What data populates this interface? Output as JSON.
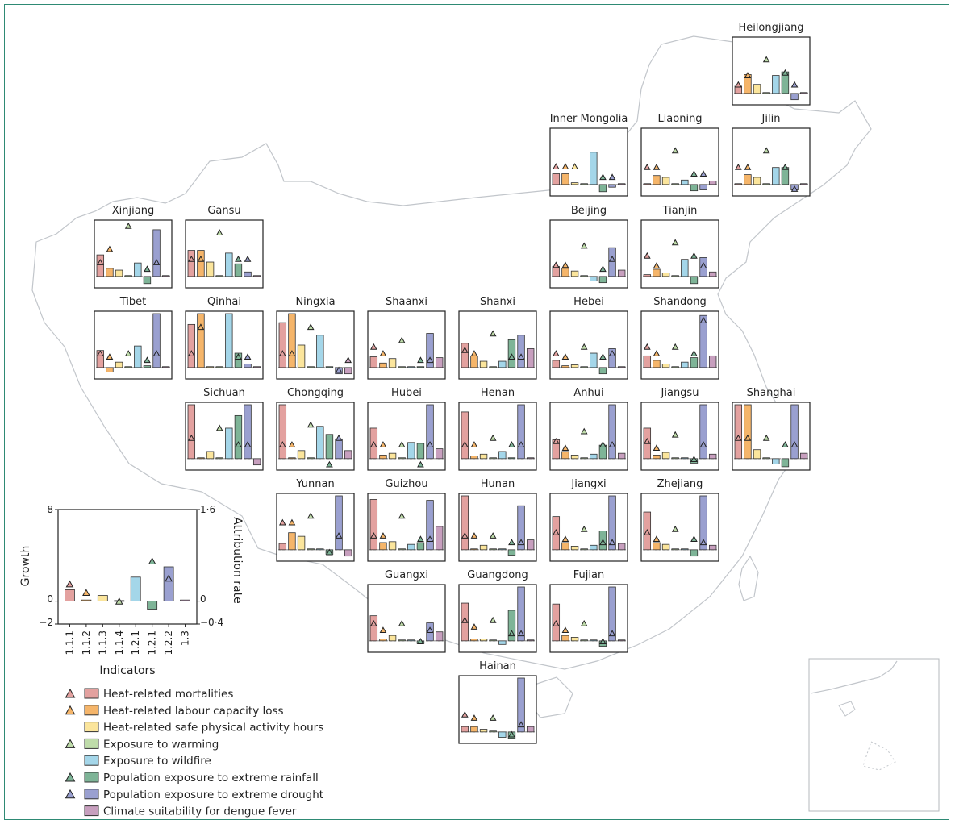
{
  "legend": {
    "colors": [
      "#e3a19f",
      "#f5b56a",
      "#fbe59c",
      "#bfdcaa",
      "#a4d6e9",
      "#7eb497",
      "#9aa0d0",
      "#c79fbe"
    ],
    "labels": [
      "Heat-related mortalities",
      "Heat-related labour capacity loss",
      "Heat-related safe physical activity hours",
      "Exposure to warming",
      "Exposure to wildfire",
      "Population exposure to extreme rainfall",
      "Population exposure to extreme drought",
      "Climate suitability for dengue fever"
    ],
    "triangle_shown": [
      true,
      true,
      false,
      true,
      false,
      true,
      true,
      false
    ]
  },
  "chart_data": {
    "type": "bar",
    "description_series": [
      "growth (bars)",
      "attribution rate (triangles)"
    ],
    "categories": [
      "1.1.1",
      "1.1.2",
      "1.1.3",
      "1.1.4",
      "1.2.1",
      "1.2.1",
      "1.2.2",
      "1.3"
    ],
    "national": {
      "growth": [
        1.0,
        0.1,
        0.5,
        0.05,
        2.1,
        -0.7,
        3.0,
        0.1
      ],
      "attribution": [
        0.3,
        0.15,
        null,
        0.0,
        null,
        0.7,
        0.4,
        null
      ]
    },
    "ylim_growth": [
      -2,
      8
    ],
    "ylim_attribution": [
      -0.4,
      1.6
    ],
    "ylabel_left": "Growth",
    "ylabel_right": "Attribution rate",
    "xlabel": "Indicators",
    "tick_labels_left": [
      "8",
      "0",
      "−2"
    ],
    "tick_labels_right": [
      "1·6",
      "0",
      "−0·4"
    ],
    "provinces": [
      {
        "name": "Heilongjiang",
        "row": 0,
        "col": 7,
        "growth": [
          0.8,
          2.1,
          1.0,
          0.1,
          2.0,
          2.4,
          -0.7,
          0.1
        ],
        "attribution": [
          0.12,
          0.26,
          null,
          0.5,
          null,
          0.3,
          0.12,
          null
        ]
      },
      {
        "name": "Inner Mongolia",
        "row": 1,
        "col": 5,
        "growth": [
          1.2,
          1.2,
          0.2,
          0.1,
          3.6,
          -0.8,
          -0.3,
          0.1
        ],
        "attribution": [
          0.26,
          0.26,
          0.26,
          null,
          null,
          0.1,
          0.1,
          null
        ]
      },
      {
        "name": "Liaoning",
        "row": 1,
        "col": 6,
        "growth": [
          0.1,
          1.0,
          0.8,
          0.1,
          0.5,
          -0.7,
          -0.6,
          0.4
        ],
        "attribution": [
          0.25,
          0.25,
          null,
          0.5,
          null,
          0.15,
          0.15,
          null
        ]
      },
      {
        "name": "Jilin",
        "row": 1,
        "col": 7,
        "growth": [
          0.1,
          1.1,
          0.8,
          0.1,
          1.9,
          1.9,
          -0.6,
          0.1
        ],
        "attribution": [
          0.25,
          0.25,
          null,
          0.5,
          null,
          0.25,
          -0.08,
          null
        ]
      },
      {
        "name": "Xinjiang",
        "row": 2,
        "col": 0,
        "growth": [
          2.4,
          0.9,
          0.7,
          0.1,
          1.5,
          -0.8,
          5.2,
          0.1
        ],
        "attribution": [
          0.2,
          0.4,
          null,
          0.75,
          null,
          0.1,
          0.2,
          null
        ]
      },
      {
        "name": "Gansu",
        "row": 2,
        "col": 1,
        "growth": [
          2.9,
          2.9,
          1.6,
          0.1,
          2.6,
          1.4,
          0.5,
          0.1
        ],
        "attribution": [
          0.25,
          0.25,
          null,
          0.65,
          null,
          0.25,
          0.25,
          null
        ]
      },
      {
        "name": "Beijing",
        "row": 3,
        "col": 5,
        "growth": [
          1.1,
          0.9,
          0.6,
          0.1,
          -0.5,
          -0.7,
          3.2,
          0.7
        ],
        "attribution": [
          0.16,
          0.16,
          null,
          0.45,
          null,
          0.1,
          0.25,
          null
        ]
      },
      {
        "name": "Tianjin",
        "row": 3,
        "col": 6,
        "growth": [
          0.2,
          0.8,
          0.4,
          0.1,
          1.9,
          -0.8,
          2.1,
          0.5
        ],
        "attribution": [
          0.3,
          0.15,
          null,
          0.5,
          null,
          0.3,
          0.15,
          null
        ]
      },
      {
        "name": "Tibet",
        "row": 4,
        "col": 0,
        "growth": [
          1.9,
          -0.5,
          0.6,
          0.1,
          2.4,
          0.2,
          6.0,
          0.1
        ],
        "attribution": [
          0.2,
          0.15,
          null,
          0.2,
          null,
          0.1,
          0.2,
          null
        ]
      },
      {
        "name": "Qinhai",
        "row": 4,
        "col": 1,
        "growth": [
          4.8,
          6.0,
          0.1,
          0.1,
          6.0,
          1.6,
          0.4,
          0.1
        ],
        "attribution": [
          0.2,
          0.6,
          null,
          null,
          null,
          0.15,
          0.15,
          null
        ]
      },
      {
        "name": "Ningxia",
        "row": 4,
        "col": 2,
        "growth": [
          5.0,
          6.0,
          2.5,
          0.1,
          3.6,
          0.1,
          -0.7,
          -0.7
        ],
        "attribution": [
          0.2,
          0.2,
          null,
          0.6,
          null,
          null,
          -0.05,
          0.1
        ]
      },
      {
        "name": "Shaanxi",
        "row": 4,
        "col": 3,
        "growth": [
          1.2,
          0.5,
          1.0,
          0.1,
          0.1,
          0.1,
          3.8,
          1.1
        ],
        "attribution": [
          0.3,
          0.2,
          null,
          0.4,
          null,
          0.1,
          0.1,
          null
        ]
      },
      {
        "name": "Shanxi",
        "row": 4,
        "col": 4,
        "growth": [
          2.7,
          1.3,
          0.7,
          0.1,
          0.7,
          3.1,
          3.6,
          2.1
        ],
        "attribution": [
          0.25,
          0.2,
          null,
          0.5,
          null,
          0.15,
          0.15,
          null
        ]
      },
      {
        "name": "Hebei",
        "row": 4,
        "col": 5,
        "growth": [
          0.8,
          0.2,
          0.3,
          0.1,
          1.6,
          -0.7,
          2.1,
          0.1
        ],
        "attribution": [
          0.2,
          0.15,
          null,
          0.3,
          null,
          0.15,
          0.2,
          null
        ]
      },
      {
        "name": "Shandong",
        "row": 4,
        "col": 6,
        "growth": [
          1.3,
          0.8,
          0.4,
          0.1,
          0.6,
          1.1,
          5.8,
          1.3
        ],
        "attribution": [
          0.3,
          0.2,
          null,
          0.3,
          null,
          0.2,
          0.7,
          null
        ]
      },
      {
        "name": "Sichuan",
        "row": 5,
        "col": 1,
        "growth": [
          6.0,
          0.1,
          0.8,
          0.1,
          3.4,
          4.8,
          6.0,
          -0.7
        ],
        "attribution": [
          0.3,
          null,
          null,
          0.45,
          null,
          0.2,
          0.2,
          null
        ]
      },
      {
        "name": "Chongqing",
        "row": 5,
        "col": 2,
        "growth": [
          6.0,
          0.1,
          0.9,
          0.1,
          3.6,
          2.7,
          2.2,
          0.9
        ],
        "attribution": [
          0.2,
          0.2,
          null,
          0.5,
          null,
          -0.1,
          0.3,
          null
        ]
      },
      {
        "name": "Hubei",
        "row": 5,
        "col": 3,
        "growth": [
          3.4,
          0.4,
          0.6,
          0.1,
          1.8,
          1.7,
          6.0,
          1.1
        ],
        "attribution": [
          0.2,
          0.2,
          null,
          0.2,
          null,
          -0.1,
          0.2,
          null
        ]
      },
      {
        "name": "Henan",
        "row": 5,
        "col": 4,
        "growth": [
          5.2,
          0.3,
          0.5,
          0.1,
          0.8,
          0.1,
          6.0,
          0.1
        ],
        "attribution": [
          0.2,
          0.2,
          null,
          0.3,
          null,
          0.2,
          0.2,
          null
        ]
      },
      {
        "name": "Anhui",
        "row": 5,
        "col": 5,
        "growth": [
          2.1,
          0.8,
          0.4,
          0.1,
          0.5,
          1.5,
          6.0,
          0.6
        ],
        "attribution": [
          0.25,
          0.15,
          null,
          0.4,
          null,
          0.2,
          0.2,
          null
        ]
      },
      {
        "name": "Jiangsu",
        "row": 5,
        "col": 6,
        "growth": [
          3.4,
          0.4,
          0.7,
          0.1,
          0.1,
          -0.5,
          6.0,
          0.5
        ],
        "attribution": [
          0.25,
          0.15,
          null,
          0.35,
          null,
          -0.02,
          0.2,
          null
        ]
      },
      {
        "name": "Shanghai",
        "row": 5,
        "col": 7,
        "growth": [
          6.0,
          6.0,
          1.0,
          0.1,
          -0.6,
          -0.9,
          6.0,
          0.6
        ],
        "attribution": [
          0.3,
          0.3,
          null,
          0.3,
          null,
          0.2,
          0.2,
          null
        ]
      },
      {
        "name": "Yunnan",
        "row": 6,
        "col": 2,
        "growth": [
          0.7,
          1.9,
          1.5,
          0.1,
          0.1,
          -0.5,
          6.0,
          -0.7
        ],
        "attribution": [
          0.4,
          0.4,
          null,
          0.5,
          null,
          -0.05,
          0.2,
          null
        ]
      },
      {
        "name": "Guizhou",
        "row": 6,
        "col": 3,
        "growth": [
          5.6,
          0.8,
          0.9,
          0.1,
          0.6,
          0.8,
          5.5,
          2.6
        ],
        "attribution": [
          0.2,
          0.2,
          null,
          0.5,
          null,
          0.15,
          0.15,
          null
        ]
      },
      {
        "name": "Hunan",
        "row": 6,
        "col": 4,
        "growth": [
          6.0,
          0.1,
          0.5,
          0.1,
          0.1,
          -0.6,
          4.9,
          1.1
        ],
        "attribution": [
          0.2,
          0.2,
          null,
          0.2,
          null,
          0.1,
          0.1,
          null
        ]
      },
      {
        "name": "Jiangxi",
        "row": 6,
        "col": 5,
        "growth": [
          3.7,
          0.8,
          0.4,
          0.1,
          0.5,
          2.1,
          6.0,
          0.7
        ],
        "attribution": [
          0.25,
          0.15,
          null,
          0.3,
          null,
          0.1,
          0.1,
          null
        ]
      },
      {
        "name": "Zhejiang",
        "row": 6,
        "col": 6,
        "growth": [
          4.2,
          0.8,
          0.6,
          0.1,
          0.1,
          -0.7,
          6.0,
          0.5
        ],
        "attribution": [
          0.25,
          0.15,
          null,
          0.3,
          null,
          0.15,
          0.1,
          null
        ]
      },
      {
        "name": "Guangxi",
        "row": 7,
        "col": 3,
        "growth": [
          2.8,
          0.2,
          0.6,
          0.1,
          0.1,
          -0.3,
          2.0,
          1.0
        ],
        "attribution": [
          0.25,
          0.15,
          null,
          0.25,
          null,
          -0.02,
          0.15,
          null
        ]
      },
      {
        "name": "Guangdong",
        "row": 7,
        "col": 4,
        "growth": [
          4.2,
          0.2,
          0.2,
          0.1,
          -0.4,
          3.4,
          6.0,
          0.1
        ],
        "attribution": [
          0.3,
          0.2,
          null,
          0.3,
          null,
          0.1,
          0.1,
          null
        ]
      },
      {
        "name": "Fujian",
        "row": 7,
        "col": 5,
        "growth": [
          4.1,
          0.6,
          0.4,
          0.1,
          0.1,
          -0.6,
          6.0,
          0.1
        ],
        "attribution": [
          0.25,
          0.15,
          null,
          0.25,
          null,
          -0.02,
          0.1,
          null
        ]
      },
      {
        "name": "Hainan",
        "row": 8,
        "col": 4,
        "growth": [
          0.6,
          0.6,
          0.3,
          0.1,
          -0.6,
          -0.7,
          6.0,
          0.6
        ],
        "attribution": [
          0.25,
          0.2,
          null,
          0.2,
          null,
          -0.05,
          0.1,
          null
        ]
      }
    ]
  }
}
